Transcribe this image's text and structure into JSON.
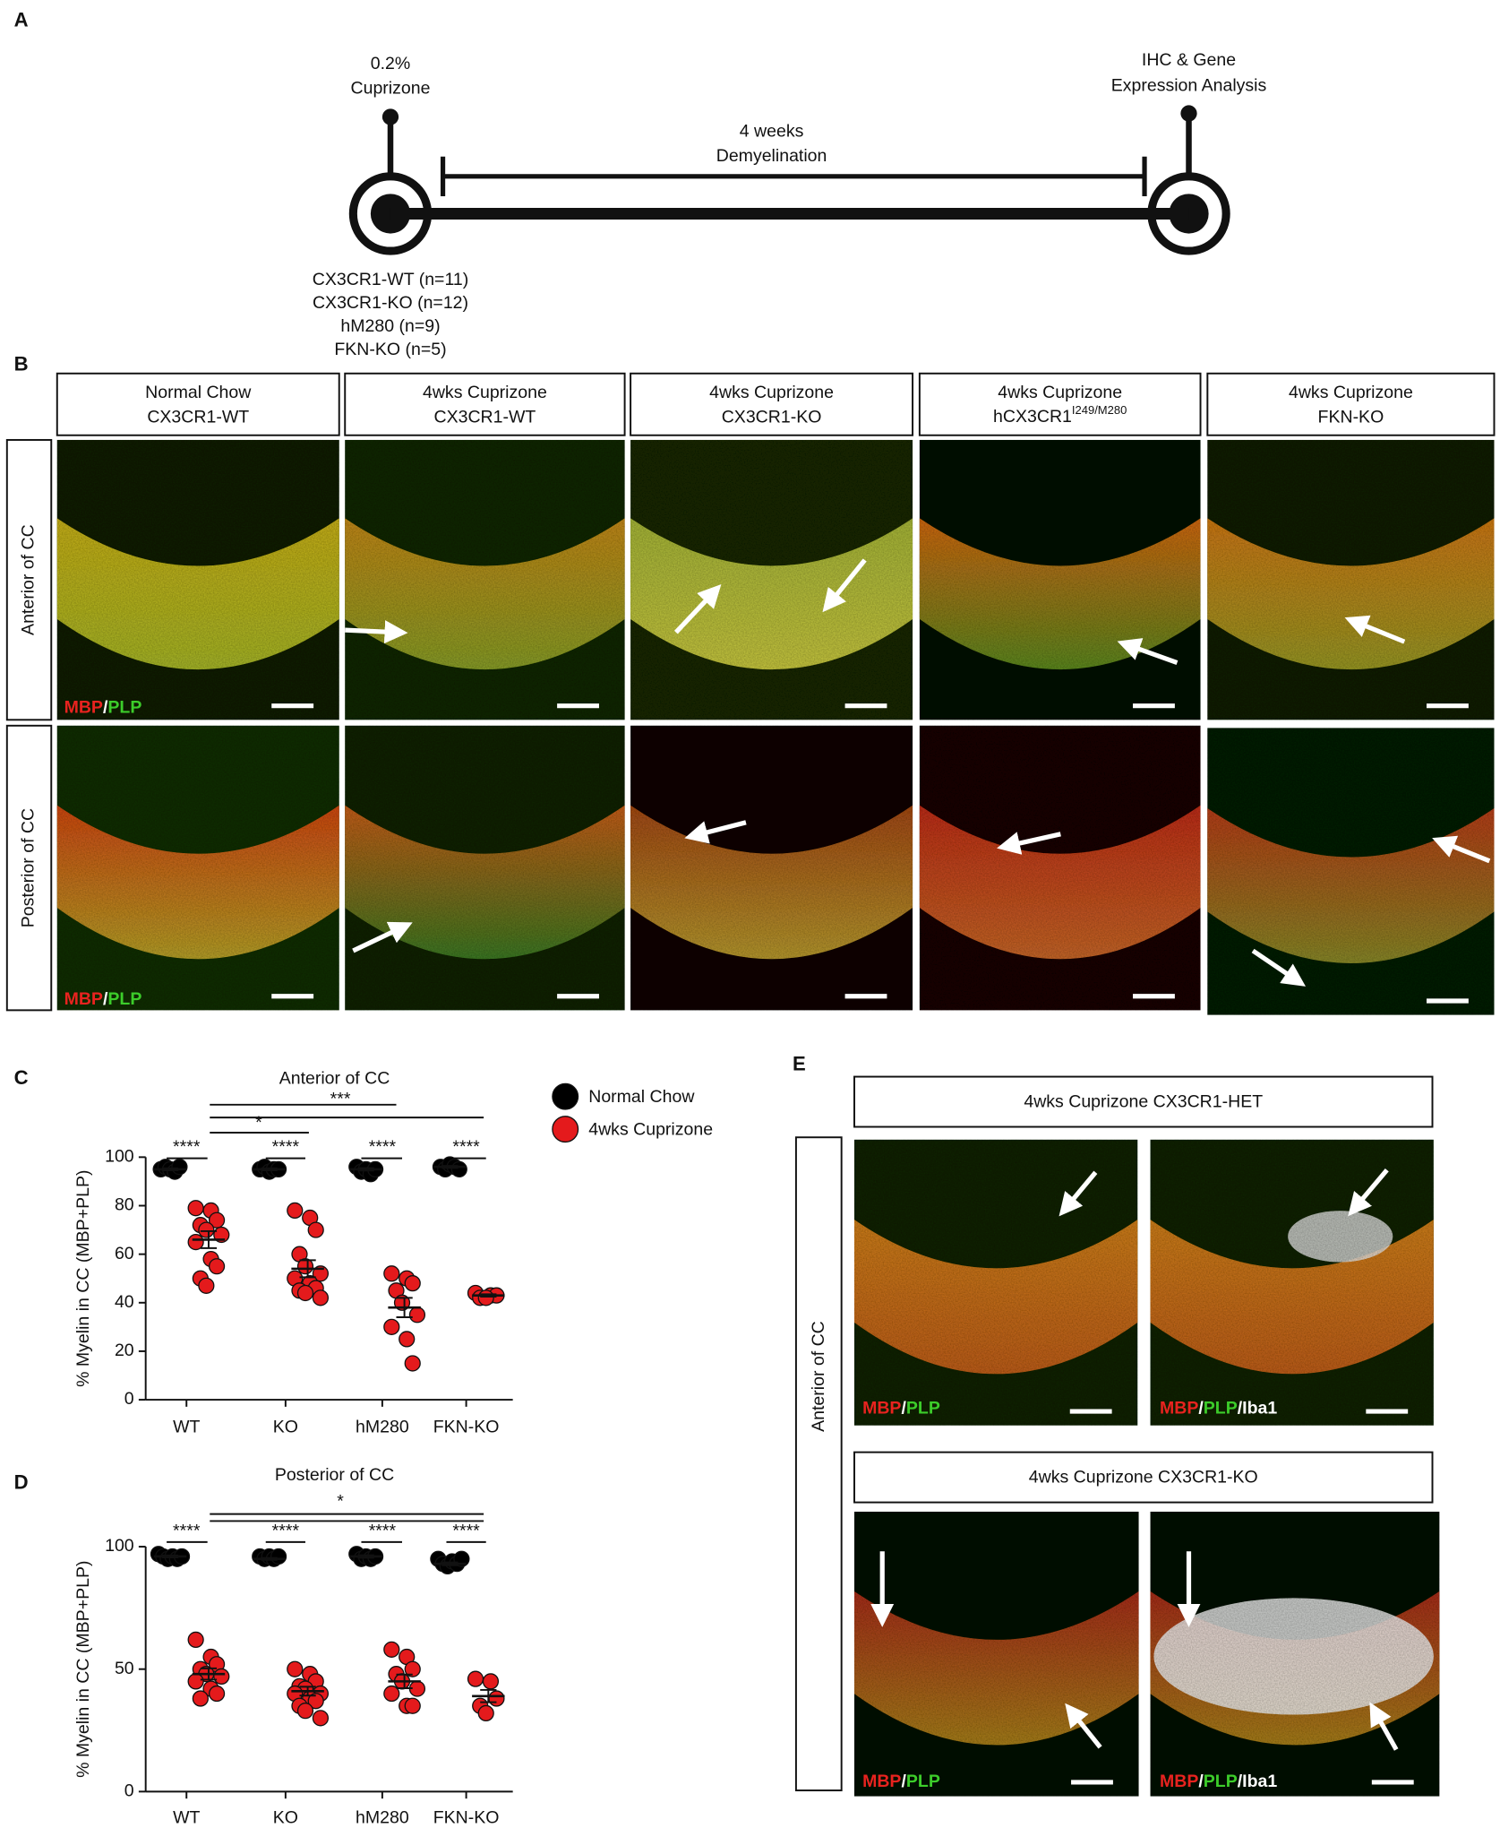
{
  "panel_a": {
    "label": "A",
    "start_label": [
      "0.2%",
      "Cuprizone"
    ],
    "duration": [
      "4 weeks",
      "Demyelination"
    ],
    "end_label": [
      "IHC & Gene",
      "Expression Analysis"
    ],
    "groups": [
      "CX3CR1-WT (n=11)",
      "CX3CR1-KO (n=12)",
      "hM280 (n=9)",
      "FKN-KO (n=5)"
    ]
  },
  "panel_b": {
    "label": "B",
    "columns": [
      [
        "Normal Chow",
        "CX3CR1-WT"
      ],
      [
        "4wks Cuprizone",
        "CX3CR1-WT"
      ],
      [
        "4wks Cuprizone",
        "CX3CR1-KO"
      ],
      [
        "4wks Cuprizone",
        "hCX3CR1"
      ],
      [
        "4wks Cuprizone",
        "FKN-KO"
      ]
    ],
    "hcx3cr1_superscript": "I249/M280",
    "rows": [
      "Anterior of CC",
      "Posterior of CC"
    ],
    "stain": [
      "MBP",
      "/",
      "PLP"
    ]
  },
  "panel_c": {
    "label": "C"
  },
  "panel_d": {
    "label": "D"
  },
  "panel_e": {
    "label": "E",
    "header_top": "4wks Cuprizone CX3CR1-HET",
    "header_bottom": "4wks Cuprizone CX3CR1-KO",
    "row": "Anterior of CC",
    "iba": "/Iba1"
  },
  "chart_data": [
    {
      "type": "dot",
      "title": "Anterior of CC",
      "ylabel": "% Myelin in CC (MBP+PLP)",
      "categories": [
        "WT",
        "KO",
        "hM280",
        "FKN-KO"
      ],
      "ylim": [
        0,
        100
      ],
      "yticks": [
        0,
        20,
        40,
        60,
        80,
        100
      ],
      "series": [
        {
          "name": "Normal Chow",
          "color": "#000000",
          "values": [
            [
              95,
              96,
              95,
              94,
              96
            ],
            [
              95,
              96,
              94,
              95,
              95
            ],
            [
              96,
              94,
              95,
              93,
              95
            ],
            [
              96,
              95,
              97,
              96,
              95
            ]
          ],
          "means": [
            95,
            95,
            95,
            96
          ],
          "sems": [
            0.4,
            0.4,
            0.5,
            0.4
          ]
        },
        {
          "name": "4wks Cuprizone",
          "color": "#e41a1c",
          "values": [
            [
              79,
              78,
              74,
              72,
              70,
              68,
              65,
              58,
              55,
              50,
              47
            ],
            [
              78,
              75,
              70,
              60,
              55,
              52,
              50,
              48,
              46,
              45,
              44,
              42
            ],
            [
              52,
              50,
              48,
              45,
              40,
              35,
              30,
              25,
              15
            ],
            [
              44,
              43,
              43,
              42,
              42
            ]
          ],
          "means": [
            66,
            54,
            38,
            43
          ],
          "sems": [
            3.5,
            3.5,
            4,
            0.5
          ]
        }
      ],
      "annotations": [
        "****",
        "****",
        "****",
        "****",
        "*",
        "***"
      ]
    },
    {
      "type": "dot",
      "title": "Posterior of CC",
      "ylabel": "% Myelin in CC (MBP+PLP)",
      "categories": [
        "WT",
        "KO",
        "hM280",
        "FKN-KO"
      ],
      "ylim": [
        0,
        100
      ],
      "yticks": [
        0,
        50,
        100
      ],
      "series": [
        {
          "color": "#000000",
          "values": [
            [
              97,
              96,
              95,
              96,
              95,
              96
            ],
            [
              96,
              95,
              96,
              95,
              96
            ],
            [
              97,
              95,
              96,
              95,
              96
            ],
            [
              95,
              93,
              92,
              94,
              93,
              95
            ]
          ],
          "means": [
            96,
            95,
            96,
            93
          ],
          "sems": [
            0.4,
            0.4,
            0.5,
            0.6
          ]
        },
        {
          "color": "#e41a1c",
          "values": [
            [
              62,
              55,
              52,
              50,
              48,
              47,
              45,
              42,
              40,
              38
            ],
            [
              50,
              48,
              45,
              43,
              42,
              40,
              40,
              38,
              37,
              35,
              33,
              30
            ],
            [
              58,
              55,
              50,
              48,
              45,
              42,
              40,
              35,
              35
            ],
            [
              46,
              45,
              38,
              35,
              32
            ]
          ],
          "means": [
            48,
            41,
            45,
            39
          ],
          "sems": [
            2.3,
            1.8,
            2.8,
            2.5
          ]
        }
      ],
      "annotations": [
        "****",
        "****",
        "****",
        "****",
        "*"
      ]
    }
  ]
}
